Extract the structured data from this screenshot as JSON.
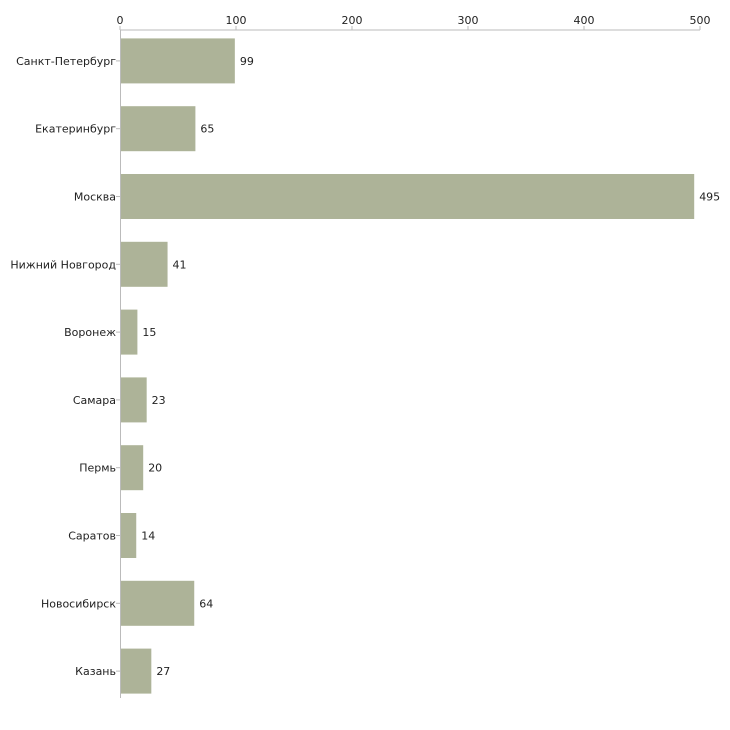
{
  "chart_data": {
    "type": "bar",
    "orientation": "horizontal",
    "title": "",
    "xlabel": "",
    "ylabel": "",
    "xlim": [
      0,
      500
    ],
    "x_ticks": [
      0,
      100,
      200,
      300,
      400,
      500
    ],
    "x_tick_labels": [
      "0",
      "100",
      "200",
      "300",
      "400",
      "500"
    ],
    "categories": [
      "Санкт-Петербург",
      "Екатеринбург",
      "Москва",
      "Нижний Новгород",
      "Воронеж",
      "Самара",
      "Пермь",
      "Саратов",
      "Новосибирск",
      "Казань"
    ],
    "values": [
      99,
      65,
      495,
      41,
      15,
      23,
      20,
      14,
      64,
      27
    ],
    "value_labels": [
      "99",
      "65",
      "495",
      "41",
      "15",
      "23",
      "20",
      "14",
      "64",
      "27"
    ],
    "grid": false,
    "legend": "none",
    "bar_color": "#adb398",
    "axis_color": "#bbbbbb",
    "text_color": "#222222"
  }
}
